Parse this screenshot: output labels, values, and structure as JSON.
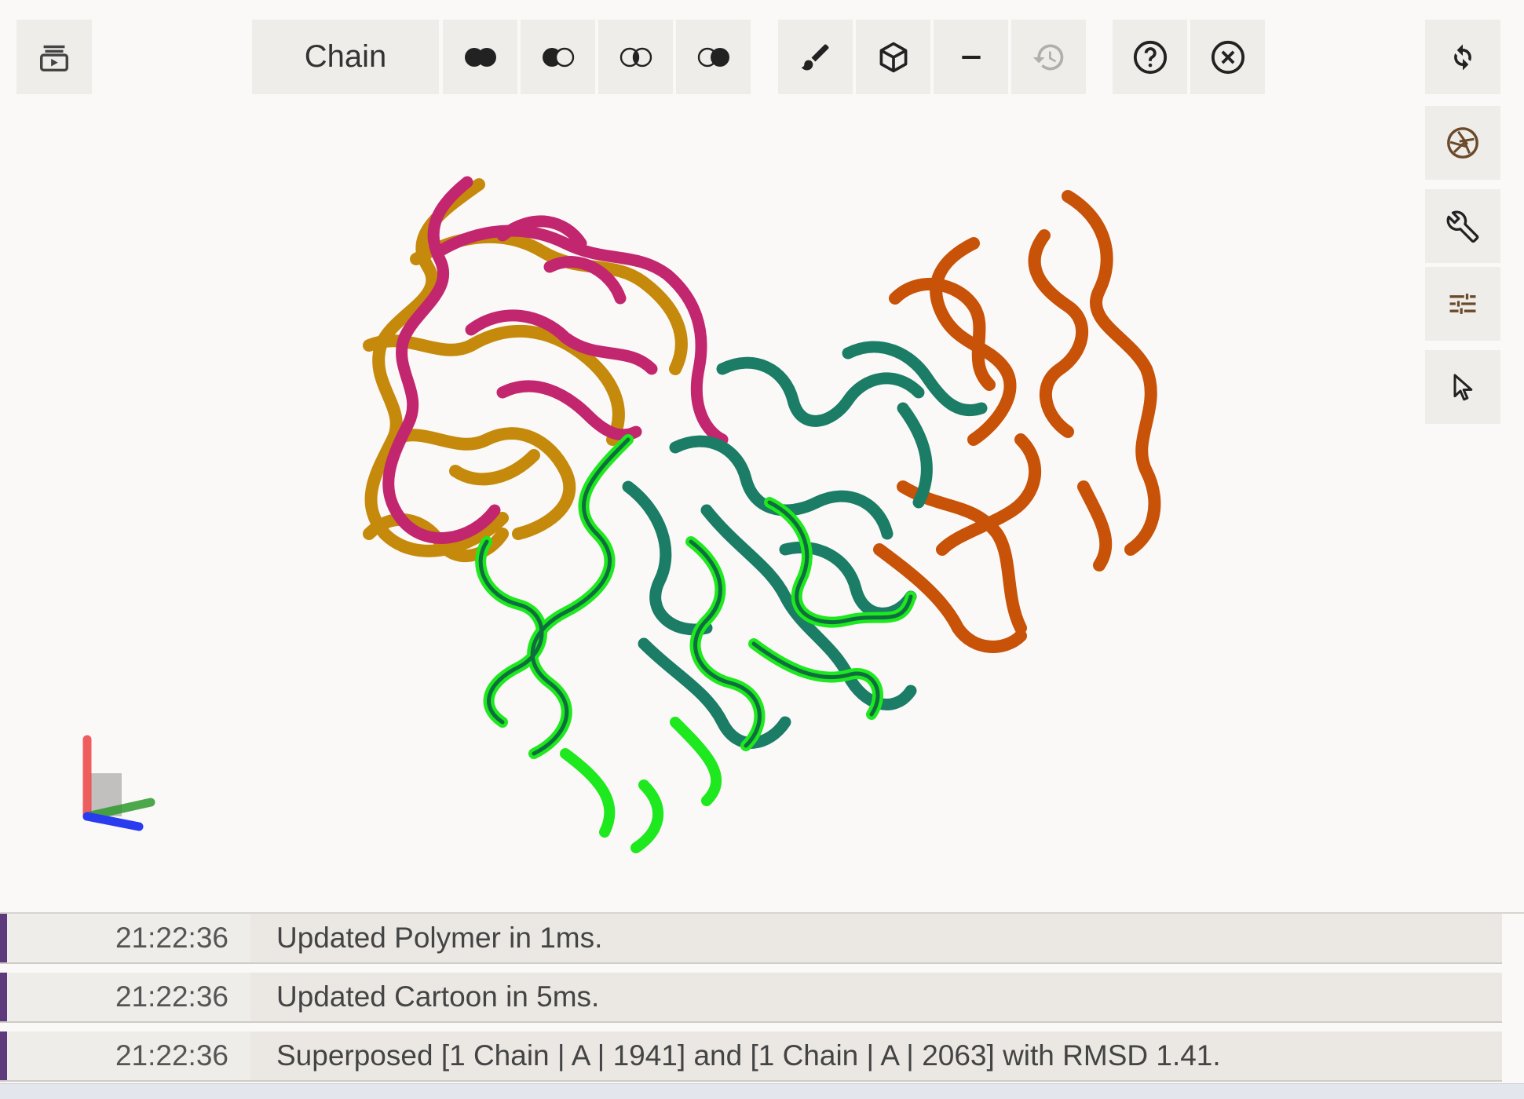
{
  "toolbar": {
    "selection_mode_label": "Chain",
    "buttons": {
      "set_union": "set-union-icon",
      "set_subtract": "set-subtract-icon",
      "set_intersect": "set-intersect-icon",
      "set_complement": "set-complement-icon",
      "color": "brush-icon",
      "representation": "cube-icon",
      "remove": "minus-icon",
      "undo": "history-icon",
      "help": "help-circle-icon",
      "close": "close-circle-icon"
    },
    "undo_enabled": false
  },
  "side_controls": [
    "reset-view-icon",
    "screenshot-icon",
    "wrench-icon",
    "sliders-icon",
    "pointer-icon"
  ],
  "structures": [
    {
      "name": "chain-magenta",
      "color": "#c2266f"
    },
    {
      "name": "chain-gold",
      "color": "#c58a0c"
    },
    {
      "name": "chain-orange",
      "color": "#c75208"
    },
    {
      "name": "chain-teal",
      "color": "#1b7d66"
    },
    {
      "name": "chain-green-selected",
      "color": "#1ee81e"
    }
  ],
  "axes_colors": {
    "x": "#2f9a2f",
    "y": "#ee4444",
    "z": "#2a3cf0"
  },
  "log": [
    {
      "time": "21:22:36",
      "message": "Updated Polymer in 1ms."
    },
    {
      "time": "21:22:36",
      "message": "Updated Cartoon in 5ms."
    },
    {
      "time": "21:22:36",
      "message": "Superposed [1 Chain | A | 1941] and [1 Chain | A | 2063] with RMSD 1.41."
    }
  ]
}
